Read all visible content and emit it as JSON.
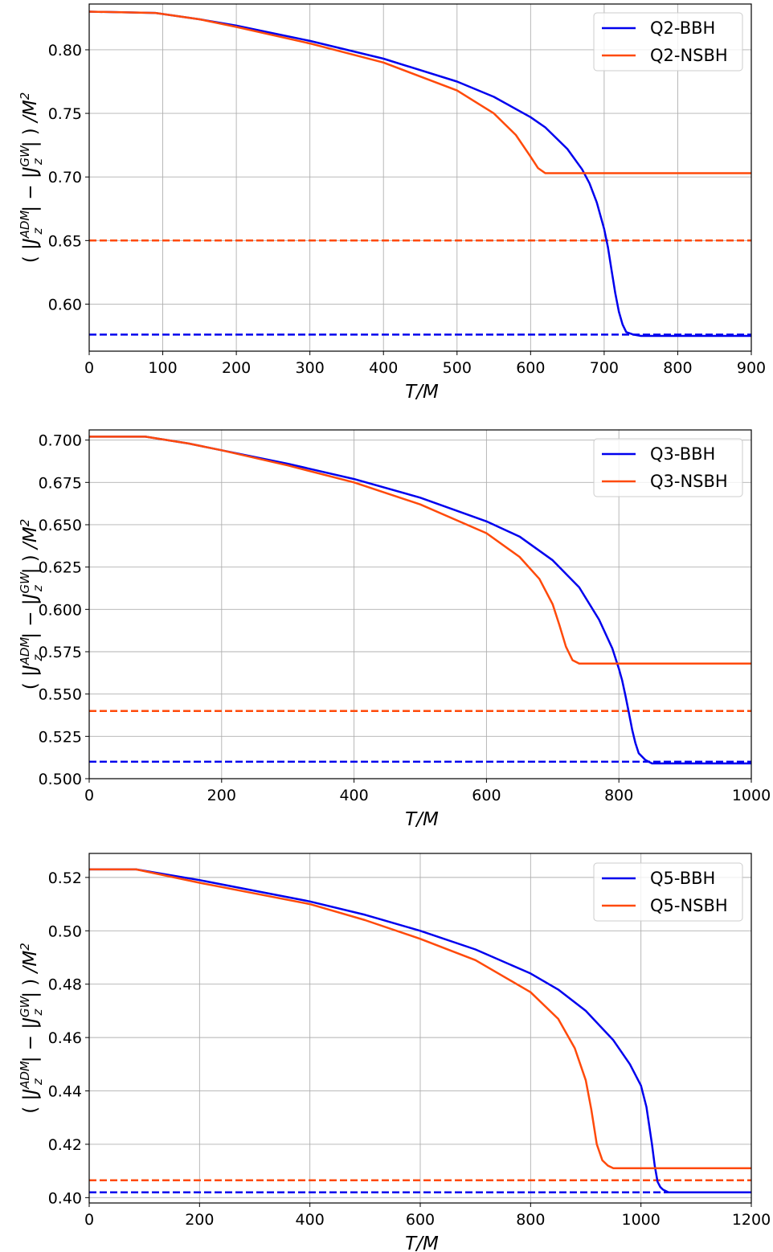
{
  "chart_data": [
    {
      "type": "line",
      "xlabel": "T/M",
      "ylabel_parts": [
        "(",
        "|J",
        "ADM",
        "z",
        "| − |J",
        "GW",
        "z",
        "|",
        ")",
        "/M",
        "2"
      ],
      "xlim": [
        0,
        900
      ],
      "ylim": [
        0.563,
        0.836
      ],
      "xticks": [
        0,
        100,
        200,
        300,
        400,
        500,
        600,
        700,
        800,
        900
      ],
      "yticks": [
        0.6,
        0.65,
        0.7,
        0.75,
        0.8
      ],
      "yfmt": 2,
      "grid": true,
      "legend_position": "top-right",
      "series": [
        {
          "name": "Q2-BBH",
          "color": "#0000ee",
          "style": "solid",
          "x": [
            0,
            90,
            150,
            200,
            300,
            400,
            500,
            550,
            600,
            620,
            650,
            670,
            680,
            690,
            700,
            705,
            710,
            715,
            720,
            725,
            730,
            740,
            750,
            900
          ],
          "y": [
            0.83,
            0.829,
            0.824,
            0.819,
            0.807,
            0.793,
            0.775,
            0.763,
            0.747,
            0.739,
            0.722,
            0.706,
            0.695,
            0.68,
            0.659,
            0.645,
            0.627,
            0.609,
            0.594,
            0.584,
            0.578,
            0.576,
            0.575,
            0.575
          ]
        },
        {
          "name": "Q2-NSBH",
          "color": "#ff4a0a",
          "style": "solid",
          "x": [
            0,
            90,
            150,
            200,
            300,
            400,
            500,
            550,
            580,
            600,
            610,
            620,
            630,
            900
          ],
          "y": [
            0.83,
            0.829,
            0.824,
            0.818,
            0.805,
            0.79,
            0.768,
            0.75,
            0.733,
            0.716,
            0.707,
            0.703,
            0.703,
            0.703
          ]
        },
        {
          "name": "",
          "color": "#ff4a0a",
          "style": "dashed",
          "x": [
            0,
            900
          ],
          "y": [
            0.65,
            0.65
          ]
        },
        {
          "name": "",
          "color": "#0000ee",
          "style": "dashed",
          "x": [
            0,
            900
          ],
          "y": [
            0.576,
            0.576
          ]
        }
      ]
    },
    {
      "type": "line",
      "xlabel": "T/M",
      "ylabel_parts": [
        "(",
        "|J",
        "ADM",
        "z",
        "| − |J",
        "GW",
        "z",
        "|",
        ")",
        "/M",
        "2"
      ],
      "xlim": [
        0,
        1000
      ],
      "ylim": [
        0.5,
        0.706
      ],
      "xticks": [
        0,
        200,
        400,
        600,
        800,
        1000
      ],
      "yticks": [
        0.5,
        0.525,
        0.55,
        0.575,
        0.6,
        0.625,
        0.65,
        0.675,
        0.7
      ],
      "yfmt": 3,
      "grid": true,
      "legend_position": "top-right",
      "series": [
        {
          "name": "Q3-BBH",
          "color": "#0000ee",
          "style": "solid",
          "x": [
            0,
            85,
            150,
            200,
            300,
            400,
            500,
            600,
            650,
            700,
            740,
            770,
            790,
            800,
            805,
            810,
            815,
            820,
            825,
            830,
            840,
            850,
            1000
          ],
          "y": [
            0.702,
            0.702,
            0.698,
            0.694,
            0.686,
            0.677,
            0.666,
            0.652,
            0.643,
            0.629,
            0.613,
            0.594,
            0.577,
            0.565,
            0.558,
            0.549,
            0.539,
            0.529,
            0.521,
            0.515,
            0.511,
            0.509,
            0.509
          ]
        },
        {
          "name": "Q3-NSBH",
          "color": "#ff4a0a",
          "style": "solid",
          "x": [
            0,
            85,
            150,
            200,
            300,
            400,
            500,
            600,
            650,
            680,
            700,
            710,
            720,
            730,
            740,
            1000
          ],
          "y": [
            0.702,
            0.702,
            0.698,
            0.694,
            0.685,
            0.675,
            0.662,
            0.645,
            0.631,
            0.618,
            0.603,
            0.591,
            0.578,
            0.57,
            0.568,
            0.568
          ]
        },
        {
          "name": "",
          "color": "#ff4a0a",
          "style": "dashed",
          "x": [
            0,
            1000
          ],
          "y": [
            0.54,
            0.54
          ]
        },
        {
          "name": "",
          "color": "#0000ee",
          "style": "dashed",
          "x": [
            0,
            1000
          ],
          "y": [
            0.51,
            0.51
          ]
        }
      ]
    },
    {
      "type": "line",
      "xlabel": "T/M",
      "ylabel_parts": [
        "(",
        "|J",
        "ADM",
        "z",
        "| − |J",
        "GW",
        "z",
        "|",
        ")",
        "/M",
        "2"
      ],
      "xlim": [
        0,
        1200
      ],
      "ylim": [
        0.398,
        0.529
      ],
      "xticks": [
        0,
        200,
        400,
        600,
        800,
        1000,
        1200
      ],
      "yticks": [
        0.4,
        0.42,
        0.44,
        0.46,
        0.48,
        0.5,
        0.52
      ],
      "yfmt": 2,
      "grid": true,
      "legend_position": "top-right",
      "series": [
        {
          "name": "Q5-BBH",
          "color": "#0000ee",
          "style": "solid",
          "x": [
            0,
            85,
            200,
            300,
            400,
            500,
            600,
            700,
            800,
            850,
            900,
            950,
            980,
            1000,
            1010,
            1020,
            1025,
            1030,
            1035,
            1040,
            1050,
            1200
          ],
          "y": [
            0.523,
            0.523,
            0.519,
            0.515,
            0.511,
            0.506,
            0.5,
            0.493,
            0.484,
            0.478,
            0.47,
            0.459,
            0.45,
            0.442,
            0.434,
            0.42,
            0.412,
            0.406,
            0.404,
            0.403,
            0.402,
            0.402
          ]
        },
        {
          "name": "Q5-NSBH",
          "color": "#ff4a0a",
          "style": "solid",
          "x": [
            0,
            85,
            200,
            300,
            400,
            500,
            600,
            700,
            800,
            850,
            880,
            900,
            910,
            920,
            930,
            940,
            950,
            1200
          ],
          "y": [
            0.523,
            0.523,
            0.518,
            0.514,
            0.51,
            0.504,
            0.497,
            0.489,
            0.477,
            0.467,
            0.456,
            0.444,
            0.433,
            0.42,
            0.414,
            0.412,
            0.411,
            0.411
          ]
        },
        {
          "name": "",
          "color": "#ff4a0a",
          "style": "dashed",
          "x": [
            0,
            1200
          ],
          "y": [
            0.4065,
            0.4065
          ]
        },
        {
          "name": "",
          "color": "#0000ee",
          "style": "dashed",
          "x": [
            0,
            1200
          ],
          "y": [
            0.402,
            0.402
          ]
        }
      ]
    }
  ]
}
